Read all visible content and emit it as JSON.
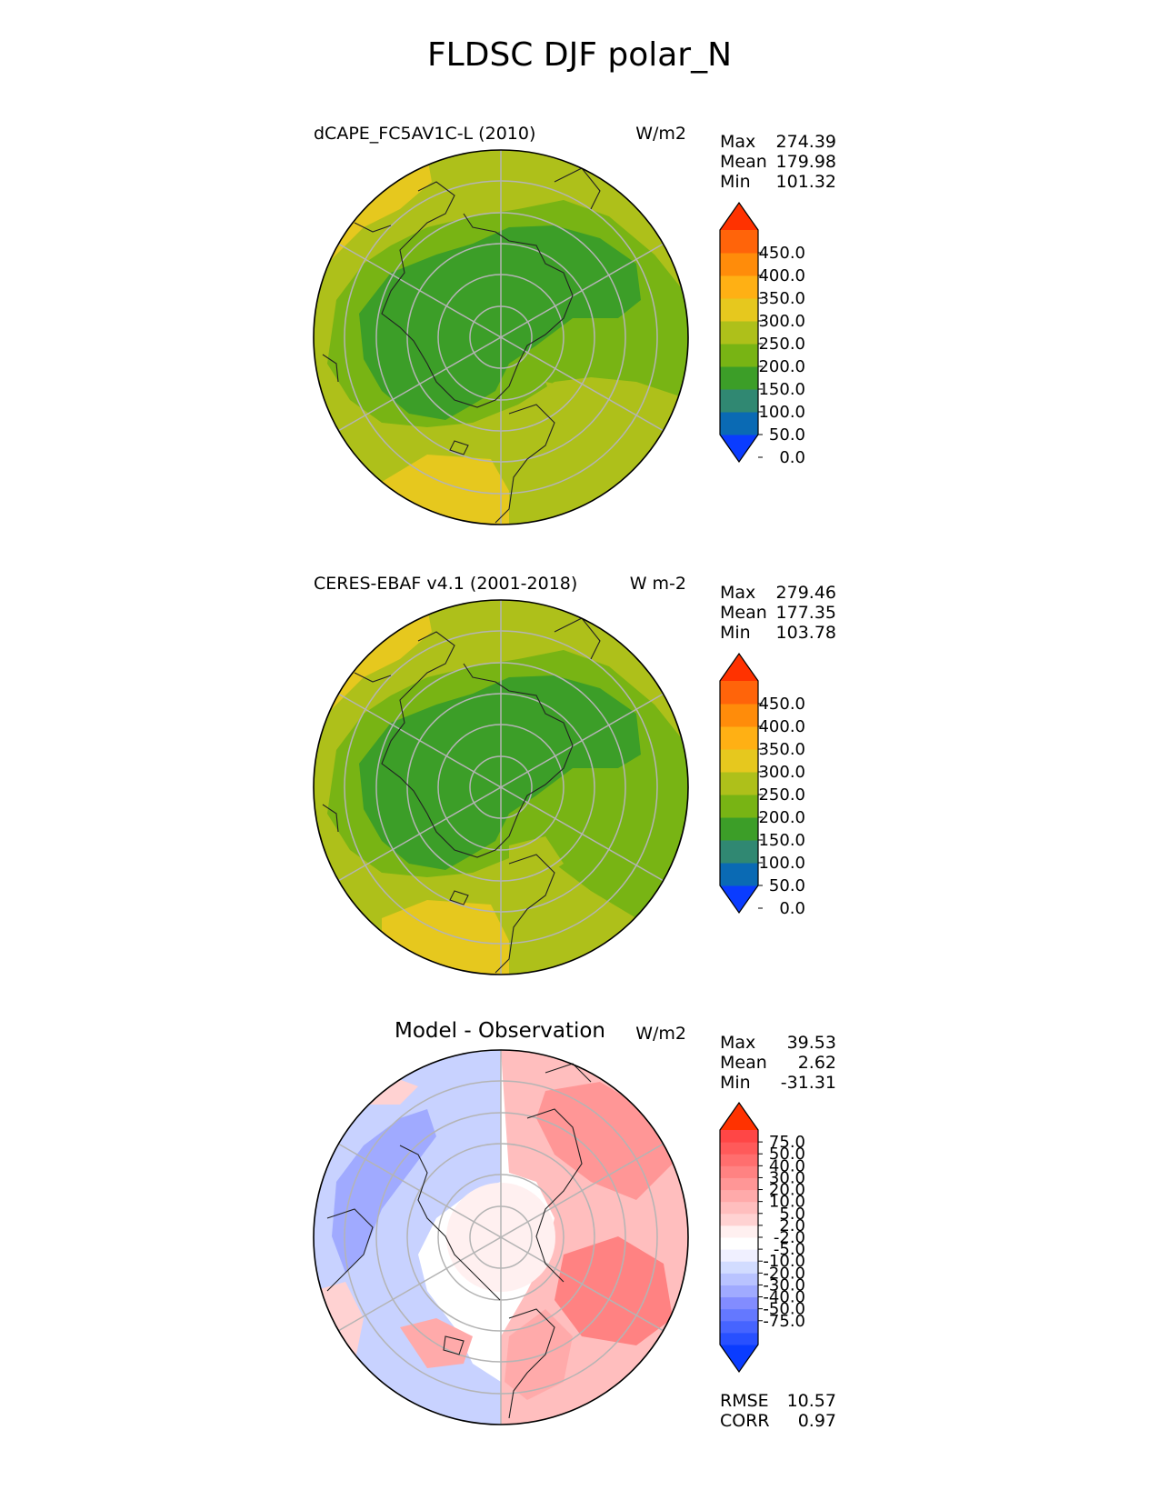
{
  "title": "FLDSC DJF polar_N",
  "panels": [
    {
      "id": "model",
      "title_left": "dCAPE_FC5AV1C-L (2010)",
      "title_center": "",
      "units": "W/m2",
      "stats": [
        {
          "label": "Max",
          "value": "274.39"
        },
        {
          "label": "Mean",
          "value": "179.98"
        },
        {
          "label": "Min",
          "value": "101.32"
        }
      ],
      "colorbar": {
        "colors": [
          "#0a3cff",
          "#0a6ab4",
          "#308872",
          "#3c9e28",
          "#78b414",
          "#aec01a",
          "#e6c81e",
          "#ffb014",
          "#ff8c0a",
          "#ff640a",
          "#ff3200"
        ],
        "ticks": [
          "450.0",
          "400.0",
          "350.0",
          "300.0",
          "250.0",
          "200.0",
          "150.0",
          "100.0",
          "50.0",
          "0.0"
        ]
      }
    },
    {
      "id": "obs",
      "title_left": "CERES-EBAF v4.1 (2001-2018)",
      "title_center": "",
      "units": "W m-2",
      "stats": [
        {
          "label": "Max",
          "value": "279.46"
        },
        {
          "label": "Mean",
          "value": "177.35"
        },
        {
          "label": "Min",
          "value": "103.78"
        }
      ],
      "colorbar": {
        "colors": [
          "#0a3cff",
          "#0a6ab4",
          "#308872",
          "#3c9e28",
          "#78b414",
          "#aec01a",
          "#e6c81e",
          "#ffb014",
          "#ff8c0a",
          "#ff640a",
          "#ff3200"
        ],
        "ticks": [
          "450.0",
          "400.0",
          "350.0",
          "300.0",
          "250.0",
          "200.0",
          "150.0",
          "100.0",
          "50.0",
          "0.0"
        ]
      }
    },
    {
      "id": "diff",
      "title_left": "",
      "title_center": "Model - Observation",
      "units": "W/m2",
      "stats": [
        {
          "label": "Max",
          "value": "39.53"
        },
        {
          "label": "Mean",
          "value": "2.62"
        },
        {
          "label": "Min",
          "value": "-31.31"
        }
      ],
      "colorbar": {
        "colors": [
          "#0a3cff",
          "#2850ff",
          "#4664ff",
          "#6478ff",
          "#828cff",
          "#a0aaff",
          "#b9c3ff",
          "#d2dcff",
          "#f0f0ff",
          "#ffffff",
          "#fff0f0",
          "#ffd2d2",
          "#ffbebe",
          "#ffaaaa",
          "#ff9696",
          "#ff8282",
          "#ff6e6e",
          "#ff5a5a",
          "#ff4646",
          "#ff3200"
        ],
        "ticks": [
          "75.0",
          "50.0",
          "40.0",
          "30.0",
          "20.0",
          "10.0",
          "5.0",
          "2.0",
          "-2.0",
          "-5.0",
          "-10.0",
          "-20.0",
          "-30.0",
          "-40.0",
          "-50.0",
          "-75.0"
        ]
      },
      "metrics": [
        {
          "label": "RMSE",
          "value": "10.57"
        },
        {
          "label": "CORR",
          "value": "0.97"
        }
      ]
    }
  ]
}
